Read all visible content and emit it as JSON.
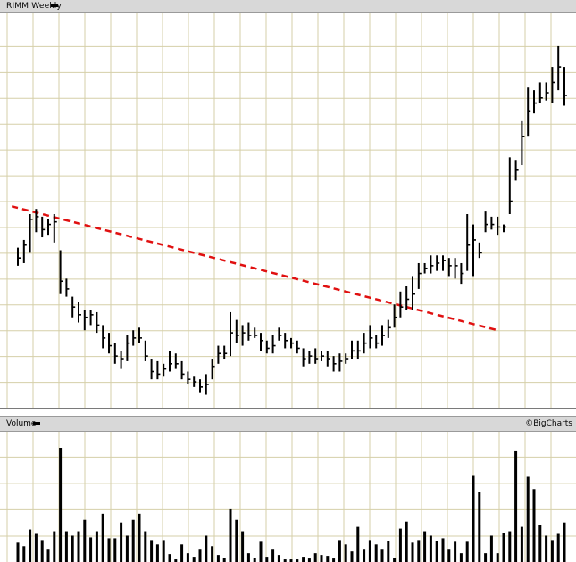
{
  "header": {
    "title": "RIMM Weekly"
  },
  "volume_panel": {
    "label": "Volume",
    "credit": "©BigCharts"
  },
  "colors": {
    "grid": "#d5cfa8",
    "bar": "#000000",
    "trendline": "#e01010",
    "panel": "#d8d8d8"
  },
  "chart_data": [
    {
      "type": "ohlc",
      "title": "RIMM Weekly",
      "xlabel": "",
      "ylabel": "",
      "grid": true,
      "y_axis_labels_shown": false,
      "ylim": [
        0,
        15
      ],
      "x": [
        1,
        2,
        3,
        4,
        5,
        6,
        7,
        8,
        9,
        10,
        11,
        12,
        13,
        14,
        15,
        16,
        17,
        18,
        19,
        20,
        21,
        22,
        23,
        24,
        25,
        26,
        27,
        28,
        29,
        30,
        31,
        32,
        33,
        34,
        35,
        36,
        37,
        38,
        39,
        40,
        41,
        42,
        43,
        44,
        45,
        46,
        47,
        48,
        49,
        50,
        51,
        52,
        53,
        54,
        55,
        56,
        57,
        58,
        59,
        60,
        61,
        62,
        63,
        64,
        65,
        66,
        67,
        68,
        69,
        70,
        71,
        72,
        73,
        74,
        75,
        76,
        77,
        78,
        79,
        80,
        81,
        82,
        83,
        84,
        85,
        86,
        87,
        88,
        89,
        90,
        91
      ],
      "ohlc": [
        {
          "h": 6.2,
          "l": 5.5,
          "c": 5.8
        },
        {
          "h": 6.5,
          "l": 5.6,
          "c": 6.3
        },
        {
          "h": 7.5,
          "l": 6.0,
          "c": 7.3
        },
        {
          "h": 7.7,
          "l": 6.8,
          "c": 7.4
        },
        {
          "h": 7.4,
          "l": 6.6,
          "c": 6.9
        },
        {
          "h": 7.3,
          "l": 6.7,
          "c": 7.1
        },
        {
          "h": 7.5,
          "l": 6.4,
          "c": 7.2
        },
        {
          "h": 6.1,
          "l": 4.4,
          "c": 4.9
        },
        {
          "h": 5.0,
          "l": 4.3,
          "c": 4.6
        },
        {
          "h": 4.3,
          "l": 3.5,
          "c": 3.9
        },
        {
          "h": 4.1,
          "l": 3.3,
          "c": 3.6
        },
        {
          "h": 3.8,
          "l": 3.0,
          "c": 3.5
        },
        {
          "h": 3.8,
          "l": 3.2,
          "c": 3.6
        },
        {
          "h": 3.7,
          "l": 2.9,
          "c": 3.2
        },
        {
          "h": 3.2,
          "l": 2.3,
          "c": 2.7
        },
        {
          "h": 2.9,
          "l": 2.1,
          "c": 2.4
        },
        {
          "h": 2.5,
          "l": 1.7,
          "c": 2.0
        },
        {
          "h": 2.2,
          "l": 1.5,
          "c": 1.9
        },
        {
          "h": 2.8,
          "l": 1.8,
          "c": 2.5
        },
        {
          "h": 3.0,
          "l": 2.4,
          "c": 2.7
        },
        {
          "h": 3.1,
          "l": 2.5,
          "c": 2.7
        },
        {
          "h": 2.6,
          "l": 1.8,
          "c": 2.0
        },
        {
          "h": 1.9,
          "l": 1.1,
          "c": 1.4
        },
        {
          "h": 1.8,
          "l": 1.1,
          "c": 1.3
        },
        {
          "h": 1.7,
          "l": 1.2,
          "c": 1.5
        },
        {
          "h": 2.2,
          "l": 1.4,
          "c": 1.7
        },
        {
          "h": 2.1,
          "l": 1.5,
          "c": 1.7
        },
        {
          "h": 1.8,
          "l": 1.1,
          "c": 1.3
        },
        {
          "h": 1.4,
          "l": 0.9,
          "c": 1.1
        },
        {
          "h": 1.2,
          "l": 0.8,
          "c": 1.0
        },
        {
          "h": 1.1,
          "l": 0.6,
          "c": 0.8
        },
        {
          "h": 1.3,
          "l": 0.5,
          "c": 0.9
        },
        {
          "h": 1.9,
          "l": 1.1,
          "c": 1.6
        },
        {
          "h": 2.4,
          "l": 1.7,
          "c": 2.1
        },
        {
          "h": 2.4,
          "l": 1.9,
          "c": 2.1
        },
        {
          "h": 3.7,
          "l": 2.0,
          "c": 2.9
        },
        {
          "h": 3.4,
          "l": 2.5,
          "c": 2.8
        },
        {
          "h": 3.2,
          "l": 2.4,
          "c": 2.9
        },
        {
          "h": 3.3,
          "l": 2.6,
          "c": 2.8
        },
        {
          "h": 3.1,
          "l": 2.7,
          "c": 2.8
        },
        {
          "h": 2.9,
          "l": 2.2,
          "c": 2.6
        },
        {
          "h": 2.6,
          "l": 2.1,
          "c": 2.3
        },
        {
          "h": 2.8,
          "l": 2.1,
          "c": 2.4
        },
        {
          "h": 3.1,
          "l": 2.6,
          "c": 2.8
        },
        {
          "h": 2.9,
          "l": 2.3,
          "c": 2.6
        },
        {
          "h": 2.7,
          "l": 2.3,
          "c": 2.5
        },
        {
          "h": 2.6,
          "l": 2.1,
          "c": 2.3
        },
        {
          "h": 2.3,
          "l": 1.6,
          "c": 1.9
        },
        {
          "h": 2.2,
          "l": 1.7,
          "c": 2.0
        },
        {
          "h": 2.3,
          "l": 1.7,
          "c": 1.9
        },
        {
          "h": 2.2,
          "l": 1.8,
          "c": 2.0
        },
        {
          "h": 2.2,
          "l": 1.6,
          "c": 1.9
        },
        {
          "h": 2.0,
          "l": 1.4,
          "c": 1.7
        },
        {
          "h": 2.1,
          "l": 1.4,
          "c": 1.8
        },
        {
          "h": 2.1,
          "l": 1.7,
          "c": 1.9
        },
        {
          "h": 2.6,
          "l": 1.9,
          "c": 2.2
        },
        {
          "h": 2.6,
          "l": 1.9,
          "c": 2.2
        },
        {
          "h": 2.9,
          "l": 2.1,
          "c": 2.5
        },
        {
          "h": 3.2,
          "l": 2.3,
          "c": 2.7
        },
        {
          "h": 2.8,
          "l": 2.3,
          "c": 2.5
        },
        {
          "h": 3.2,
          "l": 2.4,
          "c": 2.8
        },
        {
          "h": 3.4,
          "l": 2.7,
          "c": 3.1
        },
        {
          "h": 4.0,
          "l": 3.1,
          "c": 3.5
        },
        {
          "h": 4.5,
          "l": 3.5,
          "c": 3.9
        },
        {
          "h": 4.7,
          "l": 3.8,
          "c": 4.2
        },
        {
          "h": 5.1,
          "l": 3.8,
          "c": 4.4
        },
        {
          "h": 5.6,
          "l": 4.6,
          "c": 5.2
        },
        {
          "h": 5.6,
          "l": 5.2,
          "c": 5.4
        },
        {
          "h": 5.9,
          "l": 5.2,
          "c": 5.5
        },
        {
          "h": 5.9,
          "l": 5.3,
          "c": 5.6
        },
        {
          "h": 5.9,
          "l": 5.3,
          "c": 5.7
        },
        {
          "h": 5.8,
          "l": 5.1,
          "c": 5.5
        },
        {
          "h": 5.8,
          "l": 5.0,
          "c": 5.5
        },
        {
          "h": 5.6,
          "l": 4.8,
          "c": 5.2
        },
        {
          "h": 7.5,
          "l": 5.3,
          "c": 6.3
        },
        {
          "h": 7.1,
          "l": 5.1,
          "c": 6.5
        },
        {
          "h": 6.4,
          "l": 5.8,
          "c": 6.0
        },
        {
          "h": 7.6,
          "l": 6.8,
          "c": 7.1
        },
        {
          "h": 7.4,
          "l": 6.9,
          "c": 7.1
        },
        {
          "h": 7.4,
          "l": 6.7,
          "c": 7.0
        },
        {
          "h": 7.1,
          "l": 6.8,
          "c": 7.0
        },
        {
          "h": 9.7,
          "l": 7.5,
          "c": 8.0
        },
        {
          "h": 9.6,
          "l": 8.8,
          "c": 9.2
        },
        {
          "h": 11.1,
          "l": 9.4,
          "c": 10.5
        },
        {
          "h": 12.4,
          "l": 10.5,
          "c": 11.5
        },
        {
          "h": 12.3,
          "l": 11.4,
          "c": 11.8
        },
        {
          "h": 12.6,
          "l": 11.8,
          "c": 12.0
        },
        {
          "h": 12.6,
          "l": 11.9,
          "c": 12.2
        },
        {
          "h": 13.2,
          "l": 11.8,
          "c": 12.6
        },
        {
          "h": 14.0,
          "l": 12.3,
          "c": 13.2
        },
        {
          "h": 13.2,
          "l": 11.7,
          "c": 12.1
        }
      ],
      "trendline": {
        "x": [
          0,
          80
        ],
        "y": [
          7.8,
          3.0
        ],
        "style": "dashed",
        "color": "#e01010"
      }
    },
    {
      "type": "bar",
      "title": "Volume",
      "grid": true,
      "ylim": [
        0,
        13
      ],
      "x": [
        1,
        2,
        3,
        4,
        5,
        6,
        7,
        8,
        9,
        10,
        11,
        12,
        13,
        14,
        15,
        16,
        17,
        18,
        19,
        20,
        21,
        22,
        23,
        24,
        25,
        26,
        27,
        28,
        29,
        30,
        31,
        32,
        33,
        34,
        35,
        36,
        37,
        38,
        39,
        40,
        41,
        42,
        43,
        44,
        45,
        46,
        47,
        48,
        49,
        50,
        51,
        52,
        53,
        54,
        55,
        56,
        57,
        58,
        59,
        60,
        61,
        62,
        63,
        64,
        65,
        66,
        67,
        68,
        69,
        70,
        71,
        72,
        73,
        74,
        75,
        76,
        77,
        78,
        79,
        80,
        81,
        82,
        83,
        84,
        85,
        86,
        87,
        88,
        89,
        90,
        91
      ],
      "values": [
        2.2,
        1.8,
        3.7,
        3.2,
        2.5,
        1.5,
        3.5,
        13.0,
        3.5,
        3.0,
        3.5,
        4.8,
        2.8,
        3.5,
        5.5,
        2.7,
        2.7,
        4.5,
        3.0,
        4.8,
        5.5,
        3.5,
        2.5,
        2.0,
        2.5,
        0.9,
        0.3,
        2.0,
        1.0,
        0.6,
        1.5,
        3.0,
        1.8,
        0.8,
        0.5,
        6.0,
        4.8,
        3.5,
        1.0,
        0.5,
        2.3,
        0.6,
        1.5,
        0.8,
        0.3,
        0.3,
        0.3,
        0.6,
        0.4,
        1.0,
        0.8,
        0.7,
        0.4,
        2.5,
        2.0,
        1.2,
        4.0,
        1.5,
        2.5,
        2.0,
        1.5,
        2.4,
        0.5,
        3.8,
        4.6,
        2.2,
        2.5,
        3.5,
        3.0,
        2.4,
        2.7,
        1.5,
        2.3,
        1.0,
        2.3,
        9.8,
        8.0,
        1.0,
        3.0,
        1.0,
        3.3,
        3.5,
        12.6,
        4.0,
        9.7,
        8.3,
        4.2,
        3.0,
        2.5,
        3.2,
        4.5
      ]
    }
  ]
}
